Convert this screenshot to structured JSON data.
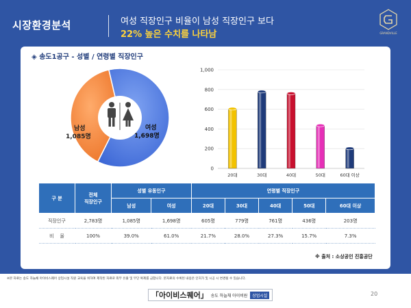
{
  "header": {
    "section_title": "시장환경분석",
    "headline_line1": "여성 직장인구 비율이 남성 직장인구 보다",
    "headline_line2": "22% 높은 수치를 나타남",
    "logo_text": "GRANDVILLE"
  },
  "card": {
    "bullet": "◈",
    "title": "송도1공구 - 성별 / 연령별 직장인구"
  },
  "colors": {
    "header_bg": "#2f55a4",
    "accent_yellow": "#ffd43b",
    "female": "#4a7ae6",
    "male": "#f58a3c",
    "table_header": "#2f6fba"
  },
  "chart_data": [
    {
      "type": "pie",
      "title": "성별 직장인구",
      "labels": [
        "여성",
        "남성"
      ],
      "values": [
        1698,
        1085
      ],
      "value_labels": [
        "1,698명",
        "1,085명"
      ],
      "colors": [
        "#4a7ae6",
        "#f58a3c"
      ],
      "icons": [
        "male-person-icon",
        "female-person-icon"
      ]
    },
    {
      "type": "bar",
      "title": "연령별 직장인구",
      "categories": [
        "20대",
        "30대",
        "40대",
        "50대",
        "60대 이상"
      ],
      "values": [
        605,
        779,
        761,
        436,
        203
      ],
      "colors": [
        "#f2c200",
        "#1f3b7a",
        "#c8102e",
        "#e62fb7",
        "#1f3b7a"
      ],
      "ylim": [
        0,
        1000
      ],
      "yticks": [
        0,
        200,
        400,
        600,
        800,
        1000
      ],
      "ytick_labels": [
        "0",
        "200",
        "400",
        "600",
        "800",
        "1,000"
      ]
    }
  ],
  "table": {
    "header_gubun": "구 분",
    "header_total_line1": "전체",
    "header_total_line2": "직장인구",
    "header_gender_group": "성별 유동인구",
    "header_age_group": "연령별 직장인구",
    "subheaders": [
      "남성",
      "여성",
      "20대",
      "30대",
      "40대",
      "50대",
      "60대 이상"
    ],
    "rows": [
      {
        "label": "직장인구",
        "cells": [
          "2,783명",
          "1,085명",
          "1,698명",
          "605명",
          "779명",
          "761명",
          "436명",
          "203명"
        ]
      },
      {
        "label": "비    율",
        "cells": [
          "100%",
          "39.0%",
          "61.0%",
          "21.7%",
          "28.0%",
          "27.3%",
          "15.7%",
          "7.3%"
        ]
      }
    ]
  },
  "source": "※ 출처 : 소상공인 진흥공단",
  "footnote": "※본 자료는 송도 하늘채 아이비스퀘어 상업시설 직원 교육을 위하여 제작된 자료로 외부 유출 및 무단 복제를 금합니다. 본자료의 수록된 내용은 인허가 및 시공 시 변경될 수 있습니다.",
  "brand": {
    "name": "「아이비스퀘어」",
    "sub": "송도 하늘채 아이비원",
    "tag": "상업시설"
  },
  "page_number": "20"
}
